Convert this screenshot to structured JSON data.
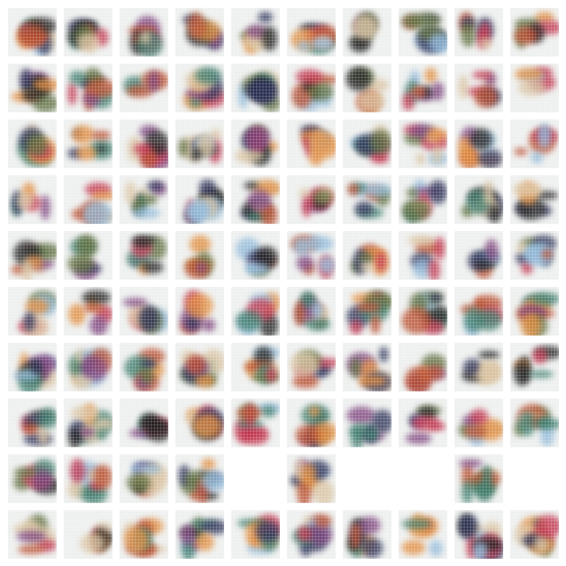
{
  "grid": {
    "rows": 10,
    "cols": 10,
    "empty_tiles": [
      [
        8,
        4
      ],
      [
        8,
        6
      ],
      [
        8,
        7
      ],
      [
        8,
        9
      ]
    ]
  },
  "palette": [
    "#c0304a",
    "#2a2f55",
    "#e08a3a",
    "#3a7a6a",
    "#1e1e1e",
    "#7a3f7a",
    "#d9c2a0",
    "#8fb8d8",
    "#b84a2a",
    "#5a6a3a"
  ]
}
